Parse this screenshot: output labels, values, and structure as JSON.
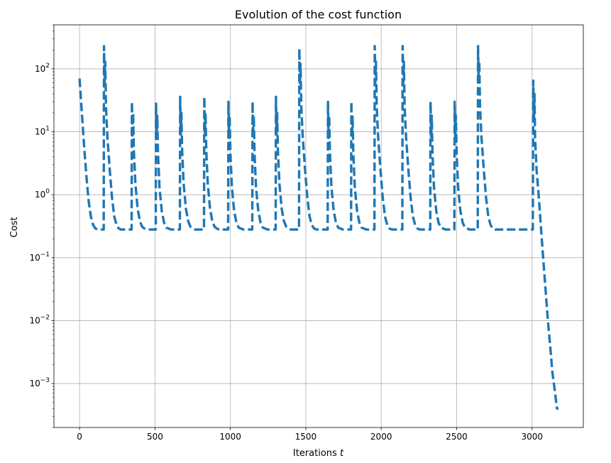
{
  "chart_data": {
    "type": "line",
    "title": "Evolution of the cost function",
    "xlabel_text": "Iterations ",
    "xlabel_var": "t",
    "ylabel": "Cost",
    "yscale": "log",
    "xlim": [
      -170,
      3340
    ],
    "ylim": [
      0.0002,
      500
    ],
    "grid": true,
    "x_ticks": [
      0,
      500,
      1000,
      1500,
      2000,
      2500,
      3000
    ],
    "y_ticks": [
      {
        "base": "10",
        "exp": "−3",
        "value": 0.001
      },
      {
        "base": "10",
        "exp": "−2",
        "value": 0.01
      },
      {
        "base": "10",
        "exp": "−1",
        "value": 0.1
      },
      {
        "base": "10",
        "exp": "0",
        "value": 1
      },
      {
        "base": "10",
        "exp": "1",
        "value": 10
      },
      {
        "base": "10",
        "exp": "2",
        "value": 100
      }
    ],
    "series": [
      {
        "color": "#1f77b4",
        "style": "dashed",
        "x": [
          0,
          15,
          30,
          45,
          60,
          75,
          90,
          105,
          125,
          145,
          160,
          162,
          166,
          170,
          175,
          185,
          200,
          215,
          230,
          245,
          260,
          275,
          290,
          310,
          330,
          345,
          347,
          351,
          355,
          360,
          370,
          385,
          400,
          415,
          430,
          445,
          460,
          475,
          490,
          505,
          507,
          511,
          515,
          520,
          530,
          545,
          560,
          575,
          590,
          605,
          620,
          635,
          650,
          665,
          667,
          671,
          675,
          680,
          690,
          705,
          720,
          735,
          750,
          765,
          780,
          795,
          810,
          825,
          827,
          831,
          835,
          840,
          850,
          865,
          880,
          895,
          910,
          925,
          940,
          955,
          970,
          985,
          987,
          991,
          995,
          1000,
          1010,
          1025,
          1040,
          1055,
          1070,
          1085,
          1100,
          1115,
          1130,
          1145,
          1147,
          1151,
          1155,
          1160,
          1170,
          1185,
          1200,
          1215,
          1230,
          1245,
          1260,
          1275,
          1290,
          1300,
          1302,
          1306,
          1310,
          1315,
          1325,
          1340,
          1355,
          1370,
          1385,
          1400,
          1415,
          1430,
          1445,
          1455,
          1457,
          1461,
          1465,
          1470,
          1480,
          1495,
          1510,
          1525,
          1540,
          1555,
          1570,
          1585,
          1600,
          1615,
          1630,
          1645,
          1647,
          1651,
          1655,
          1660,
          1670,
          1685,
          1700,
          1715,
          1730,
          1745,
          1760,
          1775,
          1790,
          1800,
          1802,
          1806,
          1810,
          1815,
          1825,
          1840,
          1855,
          1870,
          1885,
          1900,
          1915,
          1930,
          1945,
          1955,
          1957,
          1961,
          1965,
          1970,
          1980,
          1995,
          2010,
          2025,
          2040,
          2055,
          2070,
          2085,
          2100,
          2115,
          2130,
          2140,
          2142,
          2146,
          2150,
          2155,
          2165,
          2180,
          2195,
          2210,
          2225,
          2240,
          2255,
          2270,
          2285,
          2300,
          2315,
          2325,
          2327,
          2331,
          2335,
          2340,
          2350,
          2365,
          2380,
          2395,
          2410,
          2425,
          2440,
          2455,
          2470,
          2485,
          2487,
          2491,
          2495,
          2500,
          2510,
          2525,
          2540,
          2555,
          2570,
          2585,
          2600,
          2615,
          2630,
          2640,
          2642,
          2646,
          2650,
          2655,
          2665,
          2680,
          2695,
          2710,
          2725,
          2740,
          2755,
          2770,
          2790,
          2850,
          2900,
          2950,
          3000,
          3005,
          3008,
          3012,
          3016,
          3020,
          3030,
          3045,
          3060,
          3075,
          3090,
          3105,
          3120,
          3135,
          3150,
          3165,
          3175
        ],
        "y": [
          70,
          20,
          6,
          2,
          0.8,
          0.45,
          0.33,
          0.29,
          0.28,
          0.28,
          0.28,
          230,
          60,
          130,
          25,
          8,
          2.5,
          0.9,
          0.45,
          0.33,
          0.29,
          0.28,
          0.28,
          0.28,
          0.28,
          0.28,
          30,
          8,
          20,
          5,
          1.5,
          0.6,
          0.38,
          0.31,
          0.29,
          0.28,
          0.28,
          0.28,
          0.28,
          0.28,
          28,
          8,
          18,
          4.5,
          1.3,
          0.55,
          0.36,
          0.3,
          0.29,
          0.28,
          0.28,
          0.28,
          0.28,
          0.28,
          36,
          9,
          20,
          5,
          1.5,
          0.6,
          0.38,
          0.31,
          0.29,
          0.28,
          0.28,
          0.28,
          0.28,
          0.28,
          36,
          9,
          20,
          5,
          1.5,
          0.6,
          0.38,
          0.31,
          0.29,
          0.28,
          0.28,
          0.28,
          0.28,
          0.28,
          30,
          8,
          18,
          4.5,
          1.3,
          0.55,
          0.36,
          0.3,
          0.29,
          0.28,
          0.28,
          0.28,
          0.28,
          0.28,
          30,
          8,
          18,
          4.5,
          1.3,
          0.55,
          0.36,
          0.3,
          0.29,
          0.28,
          0.28,
          0.28,
          0.28,
          0.28,
          36,
          9,
          20,
          5,
          1.5,
          0.6,
          0.38,
          0.31,
          0.29,
          0.28,
          0.28,
          0.28,
          0.28,
          0.28,
          210,
          55,
          120,
          25,
          8,
          2.5,
          0.9,
          0.45,
          0.33,
          0.29,
          0.28,
          0.28,
          0.28,
          0.28,
          0.28,
          0.28,
          30,
          8,
          18,
          4.5,
          1.3,
          0.55,
          0.36,
          0.3,
          0.29,
          0.28,
          0.28,
          0.28,
          0.28,
          0.28,
          30,
          8,
          18,
          4.5,
          1.3,
          0.55,
          0.36,
          0.3,
          0.29,
          0.28,
          0.28,
          0.28,
          0.28,
          0.28,
          230,
          60,
          130,
          25,
          8,
          2.5,
          0.9,
          0.45,
          0.33,
          0.29,
          0.28,
          0.28,
          0.28,
          0.28,
          0.28,
          0.28,
          230,
          60,
          130,
          25,
          8,
          2.5,
          0.9,
          0.45,
          0.33,
          0.29,
          0.28,
          0.28,
          0.28,
          0.28,
          0.28,
          0.28,
          30,
          8,
          18,
          4.5,
          1.3,
          0.55,
          0.36,
          0.3,
          0.29,
          0.28,
          0.28,
          0.28,
          0.28,
          0.28,
          30,
          8,
          18,
          4.5,
          1.3,
          0.55,
          0.36,
          0.3,
          0.29,
          0.28,
          0.28,
          0.28,
          0.28,
          0.28,
          230,
          60,
          130,
          25,
          8,
          2.5,
          0.9,
          0.45,
          0.33,
          0.29,
          0.28,
          0.28,
          0.28,
          0.28,
          0.28,
          0.28,
          0.28,
          0.28,
          65,
          15,
          40,
          8,
          2.5,
          0.9,
          0.28,
          0.09,
          0.03,
          0.01,
          0.004,
          0.0015,
          0.0008,
          0.0004,
          0.0004
        ]
      }
    ]
  }
}
